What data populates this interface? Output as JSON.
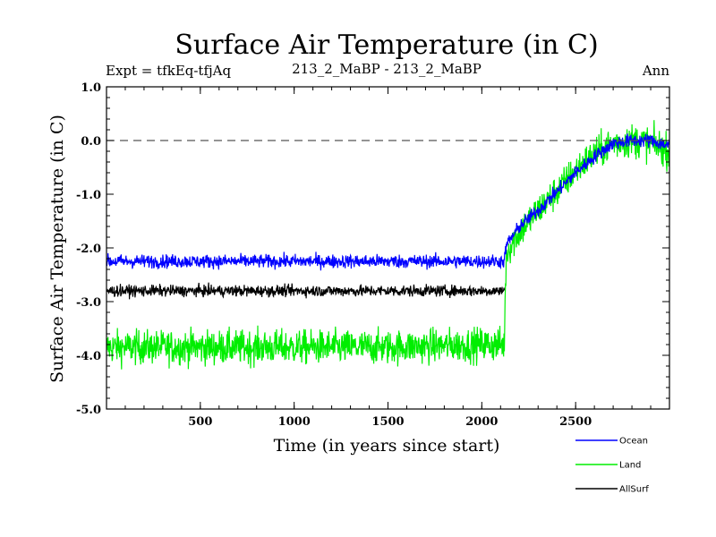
{
  "chart_data": {
    "type": "line",
    "title": "Surface Air Temperature (in C)",
    "experiment": "Expt = tfkEq-tfjAq",
    "subtitle": "213_2_MaBP - 213_2_MaBP",
    "period": "Ann",
    "xlabel": "Time (in years since start)",
    "ylabel": "Surface Air Temperature (in C)",
    "xlim": [
      0,
      3000
    ],
    "ylim": [
      -5.0,
      1.0
    ],
    "x_ticks": [
      500,
      1000,
      1500,
      2000,
      2500
    ],
    "y_ticks": [
      "1.0",
      "0.0",
      "-1.0",
      "-2.0",
      "-3.0",
      "-4.0",
      "-5.0"
    ],
    "reference_line": 0.0,
    "legend_position": "bottom-right",
    "series": [
      {
        "name": "Ocean",
        "color": "#0000ff",
        "noise": 0.12,
        "x": [
          0,
          500,
          1000,
          1500,
          2000,
          2120,
          2130,
          2200,
          2300,
          2400,
          2500,
          2600,
          2700,
          2800,
          2900,
          3000
        ],
        "y": [
          -2.25,
          -2.25,
          -2.25,
          -2.25,
          -2.25,
          -2.25,
          -1.95,
          -1.6,
          -1.3,
          -0.95,
          -0.6,
          -0.3,
          -0.05,
          0.0,
          0.0,
          -0.1
        ]
      },
      {
        "name": "Land",
        "color": "#00ee00",
        "noise": 0.3,
        "x": [
          0,
          500,
          1000,
          1500,
          2000,
          2120,
          2130,
          2200,
          2300,
          2400,
          2500,
          2600,
          2700,
          2800,
          2900,
          3000
        ],
        "y": [
          -3.85,
          -3.85,
          -3.85,
          -3.85,
          -3.8,
          -3.8,
          -2.1,
          -1.7,
          -1.3,
          -0.95,
          -0.55,
          -0.25,
          -0.05,
          0.0,
          -0.05,
          -0.2
        ]
      },
      {
        "name": "AllSurf",
        "color": "#000000",
        "noise": 0.1,
        "x": [
          0,
          500,
          1000,
          1500,
          2000,
          2120
        ],
        "y": [
          -2.8,
          -2.8,
          -2.8,
          -2.8,
          -2.8,
          -2.8
        ]
      }
    ]
  }
}
